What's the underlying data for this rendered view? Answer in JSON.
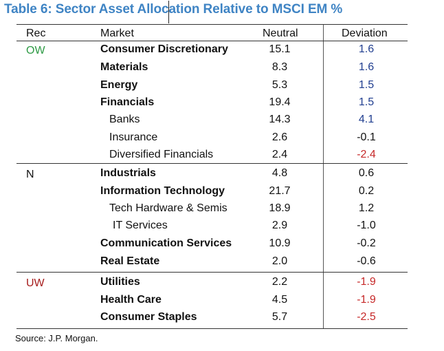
{
  "title": "Table 6: Sector Asset Allocation Relative to MSCI EM %",
  "headers": {
    "rec": "Rec",
    "market": "Market",
    "neutral": "Neutral",
    "deviation": "Deviation"
  },
  "groups": [
    {
      "rec": "OW",
      "rec_color": "#2e9a45",
      "rows": [
        {
          "market": "Consumer Discretionary",
          "bold": true,
          "indent": 0,
          "neutral": "15.1",
          "deviation": "1.6",
          "dev_style": "pos"
        },
        {
          "market": "Materials",
          "bold": true,
          "indent": 0,
          "neutral": "8.3",
          "deviation": "1.6",
          "dev_style": "pos"
        },
        {
          "market": "Energy",
          "bold": true,
          "indent": 0,
          "neutral": "5.3",
          "deviation": "1.5",
          "dev_style": "pos"
        },
        {
          "market": "Financials",
          "bold": true,
          "indent": 0,
          "neutral": "19.4",
          "deviation": "1.5",
          "dev_style": "pos"
        },
        {
          "market": "Banks",
          "bold": false,
          "indent": 1,
          "neutral": "14.3",
          "deviation": "4.1",
          "dev_style": "pos"
        },
        {
          "market": "Insurance",
          "bold": false,
          "indent": 1,
          "neutral": "2.6",
          "deviation": "-0.1",
          "dev_style": "neg-plain"
        },
        {
          "market": "Diversified Financials",
          "bold": false,
          "indent": 1,
          "neutral": "2.4",
          "deviation": "-2.4",
          "dev_style": "neg-strong"
        }
      ]
    },
    {
      "rec": "N",
      "rec_color": "#111111",
      "rows": [
        {
          "market": "Industrials",
          "bold": true,
          "indent": 0,
          "neutral": "4.8",
          "deviation": "0.6",
          "dev_style": "neg-plain"
        },
        {
          "market": "Information Technology",
          "bold": true,
          "indent": 0,
          "neutral": "21.7",
          "deviation": "0.2",
          "dev_style": "neg-plain"
        },
        {
          "market": "Tech Hardware & Semis",
          "bold": false,
          "indent": 1,
          "neutral": "18.9",
          "deviation": "1.2",
          "dev_style": "neg-plain"
        },
        {
          "market": "IT Services",
          "bold": false,
          "indent": 2,
          "neutral": "2.9",
          "deviation": "-1.0",
          "dev_style": "neg-plain"
        },
        {
          "market": "Communication Services",
          "bold": true,
          "indent": 0,
          "neutral": "10.9",
          "deviation": "-0.2",
          "dev_style": "neg-plain"
        },
        {
          "market": "Real Estate",
          "bold": true,
          "indent": 0,
          "neutral": "2.0",
          "deviation": "-0.6",
          "dev_style": "neg-plain"
        }
      ]
    },
    {
      "rec": "UW",
      "rec_color": "#a61c1c",
      "rows": [
        {
          "market": "Utilities",
          "bold": true,
          "indent": 0,
          "neutral": "2.2",
          "deviation": "-1.9",
          "dev_style": "neg-strong"
        },
        {
          "market": "Health Care",
          "bold": true,
          "indent": 0,
          "neutral": "4.5",
          "deviation": "-1.9",
          "dev_style": "neg-strong"
        },
        {
          "market": "Consumer Staples",
          "bold": true,
          "indent": 0,
          "neutral": "5.7",
          "deviation": "-2.5",
          "dev_style": "neg-strong"
        }
      ]
    }
  ],
  "source": "Source: J.P. Morgan."
}
